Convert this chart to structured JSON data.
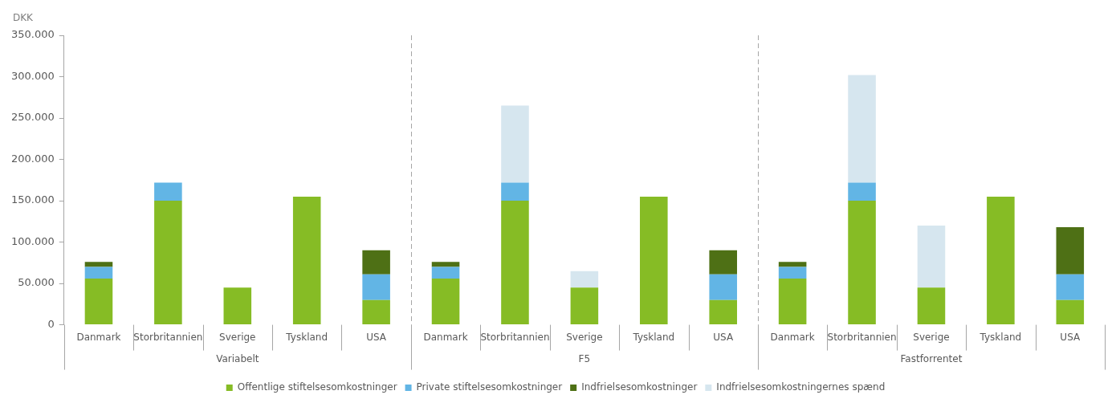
{
  "chart_data": {
    "type": "bar",
    "stacked": true,
    "ylabel": "DKK",
    "categories": [
      "Danmark",
      "Storbritannien",
      "Sverige",
      "Tyskland",
      "USA",
      "Danmark",
      "Storbritannien",
      "Sverige",
      "Tyskland",
      "USA",
      "Danmark",
      "Storbritannien",
      "Sverige",
      "Tyskland",
      "USA"
    ],
    "annotations": [
      "Variabelt",
      "F5",
      "Fastforrentet"
    ],
    "series": [
      {
        "name": "Offentlige stiftelsesomkostninger",
        "color": "#86bc25",
        "values": [
          56000,
          150000,
          45000,
          155000,
          30000,
          56000,
          150000,
          45000,
          155000,
          30000,
          56000,
          150000,
          45000,
          155000,
          30000
        ]
      },
      {
        "name": "Private stiftelsesomkostninger",
        "color": "#62b5e5",
        "values": [
          14000,
          22000,
          null,
          null,
          31000,
          14000,
          22000,
          null,
          null,
          31000,
          14000,
          22000,
          null,
          null,
          31000
        ]
      },
      {
        "name": "Indfrielsesomkostninger",
        "color": "#4e7015",
        "values": [
          6000,
          null,
          null,
          null,
          29000,
          6000,
          null,
          null,
          null,
          29000,
          6000,
          null,
          null,
          null,
          57000
        ]
      },
      {
        "name": "Indfrielsesomkostningernes spænd",
        "color": "#d6e6ef",
        "values": [
          null,
          null,
          null,
          null,
          null,
          null,
          93000,
          20000,
          null,
          null,
          null,
          130000,
          75000,
          null,
          null
        ]
      }
    ],
    "ylim": [
      0,
      350000
    ],
    "yticks": [
      {
        "value": 0,
        "label": "0"
      },
      {
        "value": 50000,
        "label": "50.000"
      },
      {
        "value": 100000,
        "label": "100.000"
      },
      {
        "value": 150000,
        "label": "150.000"
      },
      {
        "value": 200000,
        "label": "200.000"
      },
      {
        "value": 250000,
        "label": "250.000"
      },
      {
        "value": 300000,
        "label": "300.000"
      },
      {
        "value": 350000,
        "label": "350.000"
      }
    ],
    "grid": false,
    "legend": "bottom"
  }
}
